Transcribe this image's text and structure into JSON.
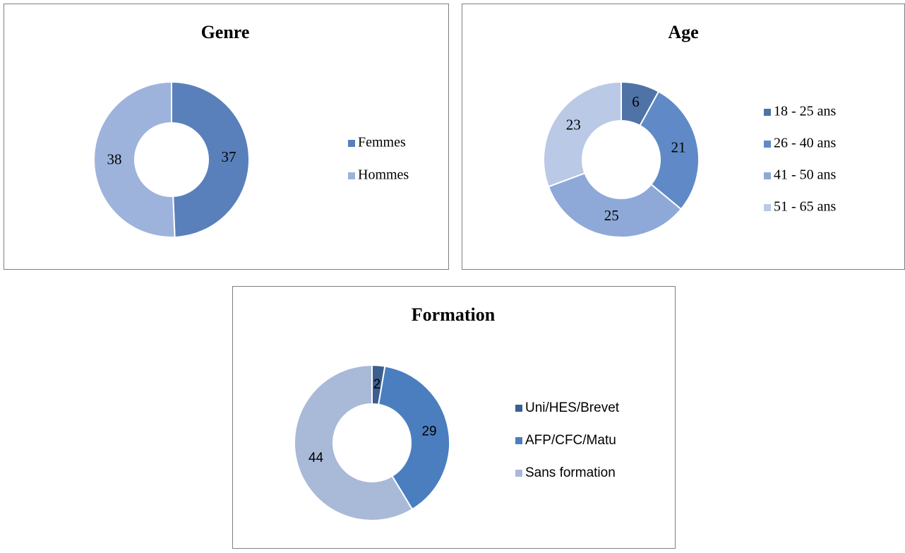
{
  "chart_data": [
    {
      "type": "donut",
      "title": "Genre",
      "categories": [
        "Femmes",
        "Hommes"
      ],
      "values": [
        37,
        38
      ],
      "colors": [
        "#5a80bb",
        "#9db3dc"
      ],
      "legend": "right"
    },
    {
      "type": "donut",
      "title": "Age",
      "categories": [
        "18 - 25 ans",
        "26 - 40 ans",
        "41 - 50 ans",
        "51 - 65 ans"
      ],
      "values": [
        6,
        21,
        25,
        23
      ],
      "colors": [
        "#4f73a6",
        "#5f8ac7",
        "#8ea9d8",
        "#bac9e6"
      ],
      "legend": "right"
    },
    {
      "type": "donut",
      "title": "Formation",
      "categories": [
        "Uni/HES/Brevet",
        "AFP/CFC/Matu",
        "Sans formation"
      ],
      "values": [
        2,
        29,
        44
      ],
      "colors": [
        "#3d5f8f",
        "#4a7ebf",
        "#a9b9d8"
      ],
      "legend": "right"
    }
  ]
}
